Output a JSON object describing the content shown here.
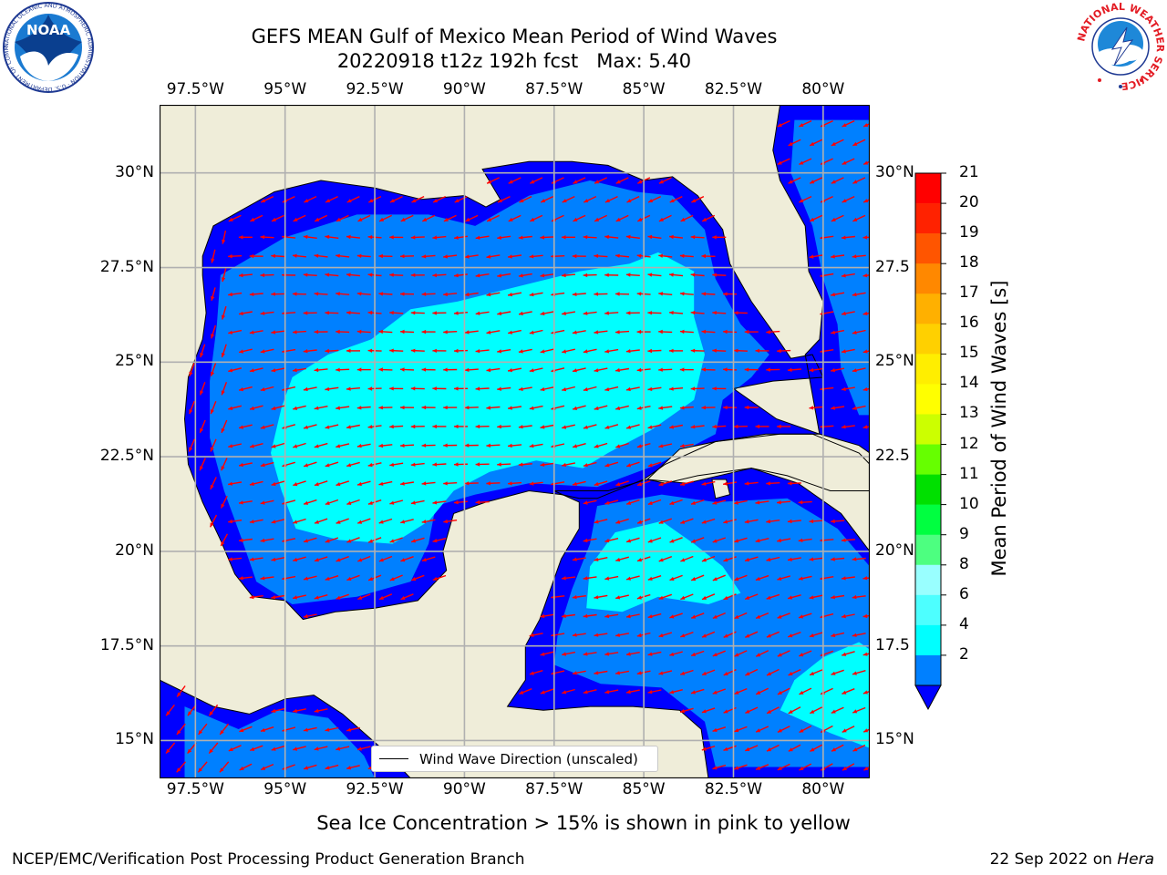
{
  "title": {
    "line1": "GEFS MEAN Gulf of Mexico Mean Period of Wind Waves",
    "line2": "20220918 t12z 192h fcst   Max: 5.40"
  },
  "logos": {
    "noaa_text": "NOAA",
    "noaa_ring_text": "NATIONAL OCEANIC AND ATMOSPHERIC ADMINISTRATION · U.S. DEPARTMENT OF COMMERCE",
    "nws_ring_text": "NATIONAL WEATHER SERVICE"
  },
  "map": {
    "lon_range": [
      -98.5,
      -78.7
    ],
    "lat_range": [
      14.0,
      31.8
    ],
    "lon_ticks": [
      "97.5°W",
      "95°W",
      "92.5°W",
      "90°W",
      "87.5°W",
      "85°W",
      "82.5°W",
      "80°W"
    ],
    "lon_values": [
      -97.5,
      -95,
      -92.5,
      -90,
      -87.5,
      -85,
      -82.5,
      -80
    ],
    "lat_ticks": [
      "30°N",
      "27.5°N",
      "25°N",
      "22.5°N",
      "20°N",
      "17.5°N",
      "15°N"
    ],
    "lat_values": [
      30,
      27.5,
      25,
      22.5,
      20,
      17.5,
      15
    ],
    "right_lat_ticks": [
      "30°N",
      "27.5",
      "25°N",
      "22.5",
      "20°N",
      "17.5",
      "15°N"
    ],
    "land_color": "#efedd9",
    "grid": true,
    "arrow_color": "#ff0000",
    "legend_label": "Wind Wave Direction (unscaled)"
  },
  "colorbar": {
    "label": "Mean Period of Wind Waves [s]",
    "ticks": [
      "21",
      "20",
      "19",
      "18",
      "17",
      "16",
      "15",
      "14",
      "13",
      "12",
      "11",
      "10",
      "9",
      "8",
      "6",
      "4",
      "2"
    ],
    "colors": [
      "#0000ff",
      "#0080ff",
      "#00ffff",
      "#4dffff",
      "#99ffff",
      "#4dff80",
      "#00ff40",
      "#00e000",
      "#66ff00",
      "#ccff00",
      "#ffff00",
      "#ffee00",
      "#ffd000",
      "#ffb000",
      "#ff8800",
      "#ff5500",
      "#ff2200",
      "#ff0000"
    ],
    "extend_color": "#0000ff"
  },
  "subtitle": "Sea Ice Concentration > 15% is shown in pink to yellow",
  "footer": {
    "left": "NCEP/EMC/Verification Post Processing Product Generation Branch",
    "right_date": "22 Sep 2022 on ",
    "right_machine": "Hera"
  }
}
